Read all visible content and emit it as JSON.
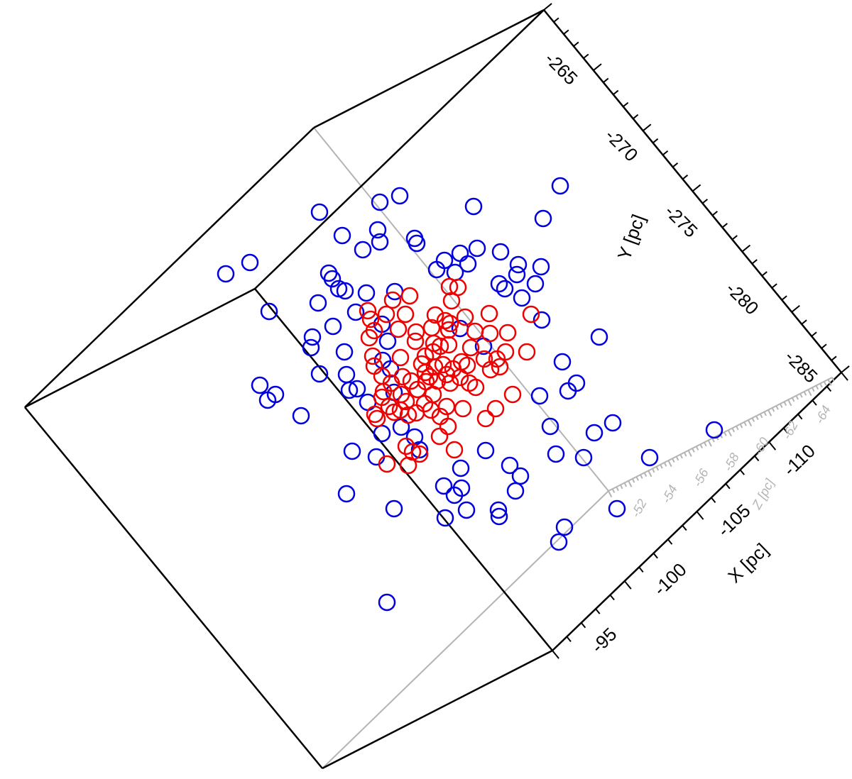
{
  "chart_data": {
    "type": "scatter",
    "subtype": "3d-scatter",
    "axes": {
      "x": {
        "label": "X [pc]",
        "ticks": [
          -95,
          -100,
          -105,
          -110
        ]
      },
      "y": {
        "label": "Y [pc]",
        "ticks": [
          -265,
          -270,
          -275,
          -280,
          -285
        ]
      },
      "z": {
        "label": "Z [pc]",
        "ticks": [
          -52,
          -54,
          -56,
          -58,
          -60,
          -62,
          -64
        ]
      }
    },
    "colors": {
      "box": "#000000",
      "back_edges": "#b4b4b4",
      "series_1": "#0000dd",
      "series_2": "#ee0000"
    },
    "marker": "open-circle",
    "series": [
      {
        "color": "#0000dd",
        "points_projected": [
          [
            789,
            262
          ],
          [
            563,
            276
          ],
          [
            535,
            285
          ],
          [
            667,
            291
          ],
          [
            450,
            299
          ],
          [
            765,
            308
          ],
          [
            532,
            324
          ],
          [
            482,
            332
          ],
          [
            584,
            336
          ],
          [
            587,
            343
          ],
          [
            535,
            341
          ],
          [
            672,
            350
          ],
          [
            648,
            357
          ],
          [
            705,
            355
          ],
          [
            511,
            352
          ],
          [
            626,
            367
          ],
          [
            659,
            372
          ],
          [
            730,
            373
          ],
          [
            352,
            370
          ],
          [
            318,
            386
          ],
          [
            463,
            385
          ],
          [
            615,
            380
          ],
          [
            641,
            384
          ],
          [
            762,
            376
          ],
          [
            728,
            387
          ],
          [
            468,
            393
          ],
          [
            703,
            400
          ],
          [
            754,
            400
          ],
          [
            477,
            407
          ],
          [
            486,
            410
          ],
          [
            516,
            413
          ],
          [
            556,
            411
          ],
          [
            711,
            407
          ],
          [
            448,
            427
          ],
          [
            379,
            439
          ],
          [
            501,
            440
          ],
          [
            735,
            420
          ],
          [
            538,
            457
          ],
          [
            763,
            451
          ],
          [
            469,
            460
          ],
          [
            648,
            463
          ],
          [
            546,
            481
          ],
          [
            440,
            475
          ],
          [
            438,
            490
          ],
          [
            681,
            488
          ],
          [
            485,
            496
          ],
          [
            844,
            475
          ],
          [
            539,
            508
          ],
          [
            792,
            510
          ],
          [
            450,
            527
          ],
          [
            488,
            528
          ],
          [
            550,
            520
          ],
          [
            366,
            543
          ],
          [
            492,
            550
          ],
          [
            503,
            548
          ],
          [
            812,
            540
          ],
          [
            800,
            551
          ],
          [
            388,
            556
          ],
          [
            377,
            564
          ],
          [
            518,
            567
          ],
          [
            760,
            558
          ],
          [
            555,
            553
          ],
          [
            424,
            586
          ],
          [
            565,
            602
          ],
          [
            538,
            611
          ],
          [
            584,
            616
          ],
          [
            863,
            596
          ],
          [
            837,
            610
          ],
          [
            1006,
            606
          ],
          [
            775,
            601
          ],
          [
            591,
            634
          ],
          [
            684,
            635
          ],
          [
            783,
            640
          ],
          [
            822,
            645
          ],
          [
            496,
            636
          ],
          [
            915,
            645
          ],
          [
            649,
            660
          ],
          [
            718,
            656
          ],
          [
            733,
            671
          ],
          [
            625,
            685
          ],
          [
            650,
            688
          ],
          [
            726,
            692
          ],
          [
            488,
            696
          ],
          [
            640,
            698
          ],
          [
            555,
            717
          ],
          [
            657,
            719
          ],
          [
            702,
            719
          ],
          [
            627,
            730
          ],
          [
            703,
            728
          ],
          [
            869,
            717
          ],
          [
            795,
            743
          ],
          [
            787,
            764
          ],
          [
            545,
            849
          ],
          [
            530,
            644
          ]
        ]
      },
      {
        "color": "#ee0000",
        "points_projected": [
          [
            633,
            404
          ],
          [
            645,
            405
          ],
          [
            577,
            417
          ],
          [
            553,
            423
          ],
          [
            636,
            424
          ],
          [
            518,
            438
          ],
          [
            544,
            443
          ],
          [
            571,
            443
          ],
          [
            522,
            450
          ],
          [
            689,
            442
          ],
          [
            748,
            443
          ],
          [
            613,
            444
          ],
          [
            655,
            447
          ],
          [
            627,
            452
          ],
          [
            634,
            456
          ],
          [
            561,
            464
          ],
          [
            586,
            468
          ],
          [
            520,
            476
          ],
          [
            527,
            466
          ],
          [
            608,
            462
          ],
          [
            632,
            465
          ],
          [
            669,
            467
          ],
          [
            690,
            470
          ],
          [
            715,
            469
          ],
          [
            585,
            481
          ],
          [
            611,
            484
          ],
          [
            620,
            488
          ],
          [
            610,
            496
          ],
          [
            632,
            486
          ],
          [
            663,
            490
          ],
          [
            742,
            496
          ],
          [
            712,
            496
          ],
          [
            564,
            504
          ],
          [
            525,
            502
          ],
          [
            599,
            502
          ],
          [
            594,
            513
          ],
          [
            624,
            514
          ],
          [
            650,
            510
          ],
          [
            682,
            506
          ],
          [
            700,
            506
          ],
          [
            527,
            516
          ],
          [
            612,
            517
          ],
          [
            638,
            520
          ],
          [
            658,
            515
          ],
          [
            538,
            530
          ],
          [
            567,
            531
          ],
          [
            599,
            525
          ],
          [
            605,
            531
          ],
          [
            629,
            528
          ],
          [
            648,
            532
          ],
          [
            704,
            517
          ],
          [
            691,
            521
          ],
          [
            551,
            540
          ],
          [
            579,
            537
          ],
          [
            600,
            538
          ],
          [
            616,
            537
          ],
          [
            634,
            540
          ],
          [
            661,
            540
          ],
          [
            670,
            546
          ],
          [
            540,
            552
          ],
          [
            565,
            556
          ],
          [
            588,
            549
          ],
          [
            610,
            556
          ],
          [
            722,
            556
          ],
          [
            698,
            576
          ],
          [
            548,
            573
          ],
          [
            572,
            566
          ],
          [
            598,
            569
          ],
          [
            629,
            573
          ],
          [
            652,
            576
          ],
          [
            684,
            590
          ],
          [
            607,
            578
          ],
          [
            575,
            585
          ],
          [
            586,
            582
          ],
          [
            620,
            587
          ],
          [
            531,
            590
          ],
          [
            528,
            584
          ],
          [
            555,
            581
          ],
          [
            631,
            601
          ],
          [
            619,
            615
          ],
          [
            640,
            634
          ],
          [
            572,
            629
          ],
          [
            581,
            637
          ],
          [
            591,
            640
          ],
          [
            545,
            654
          ],
          [
            575,
            656
          ],
          [
            564,
            578
          ],
          [
            538,
            560
          ]
        ]
      }
    ]
  }
}
